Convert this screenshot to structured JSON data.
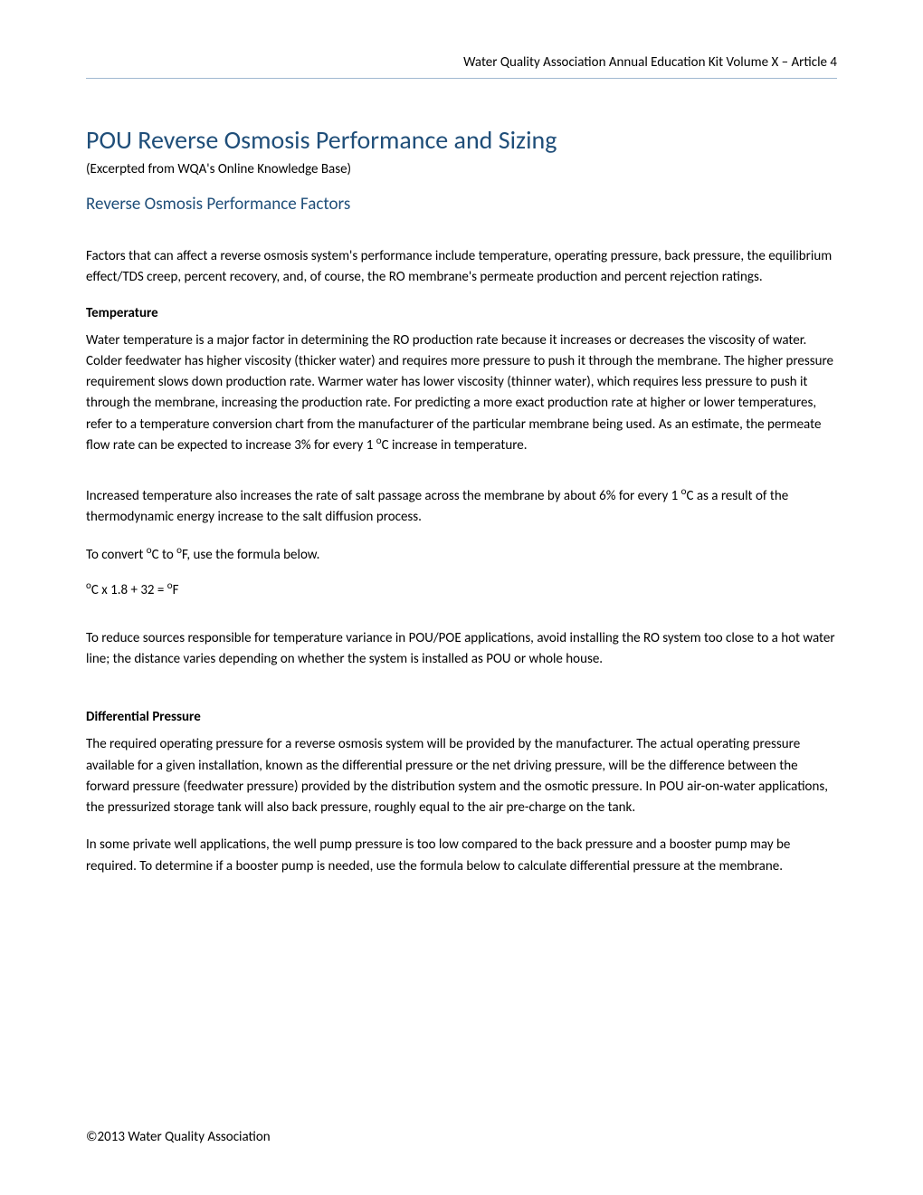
{
  "header": {
    "text": "Water Quality Association Annual Education Kit Volume X – Article 4"
  },
  "colors": {
    "title_color": "#1f4e79",
    "divider_color": "#a0b8d0",
    "body_text": "#000000",
    "background": "#ffffff"
  },
  "title": {
    "main": "POU Reverse Osmosis Performance and Sizing",
    "excerpt": "(Excerpted from WQA's Online Knowledge Base)"
  },
  "section_heading": "Reverse Osmosis Performance Factors",
  "intro_paragraph": "Factors that can affect a reverse osmosis system's performance include temperature, operating pressure, back pressure, the equilibrium effect/TDS creep, percent recovery, and, of course, the RO membrane's permeate production and percent rejection ratings.",
  "temperature": {
    "heading": "Temperature",
    "p1_before_sup": "Water temperature is a major factor in determining the RO production rate because it increases or decreases the viscosity of water. Colder feedwater has higher viscosity (thicker water) and requires more pressure to push it through the membrane. The higher pressure requirement slows down production rate. Warmer water has lower viscosity (thinner water), which requires less pressure to push it through the membrane, increasing the production rate. For predicting a more exact production rate at higher or lower temperatures, refer to a temperature conversion chart from the manufacturer of the particular membrane being used. As an estimate, the permeate flow rate can be expected to increase 3% for every 1 ",
    "p1_sup": "o",
    "p1_after_sup": "C increase in temperature.",
    "p2_before": "Increased temperature also increases the rate of salt passage across the membrane by about 6% for every 1 ",
    "p2_sup": "o",
    "p2_after": "C as a result of the thermodynamic energy increase to the salt diffusion process.",
    "p3_before": "To convert ",
    "p3_sup1": "o",
    "p3_mid1": "C to ",
    "p3_sup2": "o",
    "p3_after": "F, use the formula below.",
    "formula_sup1": "o",
    "formula_mid": "C x 1.8 + 32 = ",
    "formula_sup2": "o",
    "formula_end": "F",
    "p4": "To reduce sources responsible for temperature variance in POU/POE applications, avoid installing the RO system too close to a hot water line; the distance varies depending on whether the system is installed as POU or whole house."
  },
  "differential_pressure": {
    "heading": "Differential Pressure",
    "p1": "The required operating pressure for a reverse osmosis system will be provided by the manufacturer. The actual operating pressure available for a given installation, known as the differential pressure or the net driving pressure, will be the difference between the forward pressure (feedwater pressure) provided by the distribution system and the osmotic pressure. In POU air-on-water applications, the pressurized storage tank will also back pressure, roughly equal to the air pre-charge on the tank.",
    "p2": "In some private well applications, the well pump pressure is too low compared to the back pressure and a booster pump may be required. To determine if a booster pump is needed, use the formula below to calculate differential pressure at the membrane."
  },
  "footer": {
    "text": "©2013 Water Quality Association"
  },
  "typography": {
    "body_font": "Calibri",
    "title_fontsize": 28,
    "section_fontsize": 19,
    "body_fontsize": 15,
    "line_height": 1.55
  }
}
